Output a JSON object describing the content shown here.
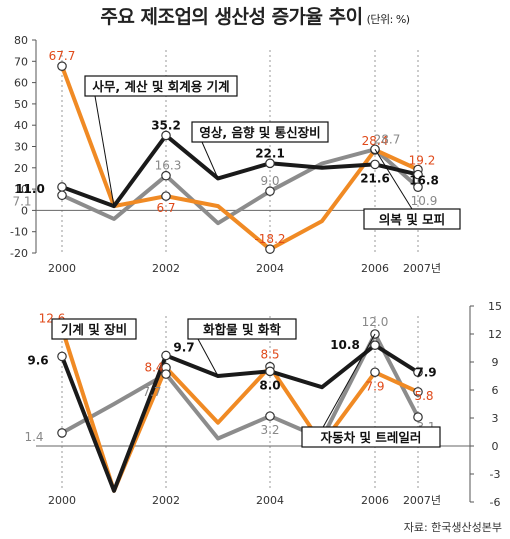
{
  "title": "주요 제조업의 생산성 증가율 추이",
  "unit": "(단위: %)",
  "source": "자료: 한국생산성본부",
  "colors": {
    "black": "#1a1a1a",
    "orange": "#f08a24",
    "gray": "#8c8c8c",
    "red_label": "#e04a1a"
  },
  "chart_data": [
    {
      "type": "line",
      "x": [
        "2000",
        "2001",
        "2002",
        "2003",
        "2004",
        "2005",
        "2006",
        "2007"
      ],
      "xtick_labels": [
        "2000",
        "",
        "2002",
        "",
        "2004",
        "",
        "2006",
        "2007년"
      ],
      "ylim": [
        -20,
        80
      ],
      "yticks": [
        -20,
        -10,
        0,
        10,
        20,
        30,
        40,
        50,
        60,
        70,
        80
      ],
      "grid": false,
      "series": [
        {
          "name": "사무, 계산 및 회계용 기계",
          "color": "#f08a24",
          "values": [
            67.7,
            2,
            6.7,
            2,
            -18.2,
            -5,
            28.4,
            19.2
          ]
        },
        {
          "name": "영상, 음향 및 통신장비",
          "color": "#1a1a1a",
          "values": [
            11.0,
            2,
            35.2,
            15,
            22.1,
            20,
            21.6,
            16.8
          ]
        },
        {
          "name": "의복 및 모피",
          "color": "#8c8c8c",
          "values": [
            7.1,
            -4,
            16.3,
            -6,
            9.0,
            22,
            28.7,
            10.9
          ]
        }
      ],
      "data_labels": [
        {
          "series": 0,
          "index": 0,
          "text": "67.7"
        },
        {
          "series": 0,
          "index": 2,
          "text": "6.7"
        },
        {
          "series": 0,
          "index": 4,
          "text": "-18.2"
        },
        {
          "series": 0,
          "index": 6,
          "text": "28.4"
        },
        {
          "series": 0,
          "index": 7,
          "text": "19.2"
        },
        {
          "series": 1,
          "index": 0,
          "text": "11.0"
        },
        {
          "series": 1,
          "index": 2,
          "text": "35.2"
        },
        {
          "series": 1,
          "index": 4,
          "text": "22.1"
        },
        {
          "series": 1,
          "index": 6,
          "text": "21.6"
        },
        {
          "series": 1,
          "index": 7,
          "text": "16.8"
        },
        {
          "series": 2,
          "index": 0,
          "text": "7.1"
        },
        {
          "series": 2,
          "index": 2,
          "text": "16.3"
        },
        {
          "series": 2,
          "index": 4,
          "text": "9.0"
        },
        {
          "series": 2,
          "index": 6,
          "text": "28.7"
        },
        {
          "series": 2,
          "index": 7,
          "text": "10.9"
        }
      ]
    },
    {
      "type": "line",
      "x": [
        "2000",
        "2001",
        "2002",
        "2003",
        "2004",
        "2005",
        "2006",
        "2007"
      ],
      "xtick_labels": [
        "2000",
        "",
        "2002",
        "",
        "2004",
        "",
        "2006",
        "2007년"
      ],
      "ylim": [
        -6,
        15
      ],
      "yticks": [
        -6,
        -3,
        0,
        3,
        6,
        9,
        12,
        15
      ],
      "grid": false,
      "series": [
        {
          "name": "기계 및 장비",
          "color": "#f08a24",
          "values": [
            12.6,
            -4.8,
            8.4,
            2.5,
            8.5,
            0.2,
            7.9,
            5.8
          ]
        },
        {
          "name": "화합물 및 화학",
          "color": "#1a1a1a",
          "values": [
            9.6,
            -4.8,
            9.7,
            7.5,
            8.0,
            6.3,
            10.8,
            7.9
          ]
        },
        {
          "name": "자동차 및 트레일러",
          "color": "#8c8c8c",
          "values": [
            1.4,
            4.5,
            7.7,
            0.8,
            3.2,
            0.8,
            12.0,
            3.1
          ]
        }
      ],
      "data_labels": [
        {
          "series": 0,
          "index": 0,
          "text": "12.6"
        },
        {
          "series": 0,
          "index": 2,
          "text": "8.4"
        },
        {
          "series": 0,
          "index": 4,
          "text": "8.5"
        },
        {
          "series": 0,
          "index": 6,
          "text": "7.9"
        },
        {
          "series": 0,
          "index": 7,
          "text": "5.8"
        },
        {
          "series": 1,
          "index": 0,
          "text": "9.6"
        },
        {
          "series": 1,
          "index": 2,
          "text": "9.7"
        },
        {
          "series": 1,
          "index": 4,
          "text": "8.0"
        },
        {
          "series": 1,
          "index": 6,
          "text": "10.8"
        },
        {
          "series": 1,
          "index": 7,
          "text": "7.9"
        },
        {
          "series": 2,
          "index": 0,
          "text": "1.4"
        },
        {
          "series": 2,
          "index": 2,
          "text": "7.7"
        },
        {
          "series": 2,
          "index": 4,
          "text": "3.2"
        },
        {
          "series": 2,
          "index": 6,
          "text": "12.0"
        },
        {
          "series": 2,
          "index": 7,
          "text": "3.1"
        }
      ]
    }
  ]
}
